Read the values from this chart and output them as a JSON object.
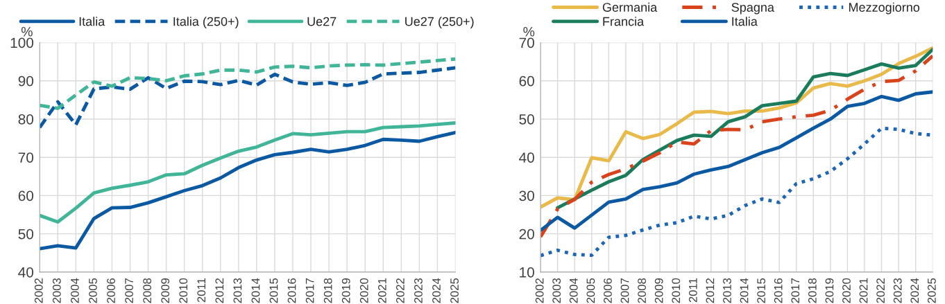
{
  "chart_data": [
    {
      "type": "line",
      "ylabel": "%",
      "categories": [
        "2002",
        "2003",
        "2004",
        "2005",
        "2006",
        "2007",
        "2008",
        "2009",
        "2010",
        "2011",
        "2012",
        "2013",
        "2014",
        "2015",
        "2016",
        "2017",
        "2018",
        "2019",
        "2020",
        "2021",
        "2022",
        "2023",
        "2024",
        "2025"
      ],
      "ylim": [
        40,
        100
      ],
      "yticks": [
        40,
        50,
        60,
        70,
        80,
        90,
        100
      ],
      "grid": true,
      "legend": "top",
      "series": [
        {
          "name": "Italia",
          "color": "#0b59a3",
          "line_style": "solid",
          "values": [
            46.1,
            46.9,
            46.3,
            54.0,
            56.8,
            56.9,
            58.1,
            59.7,
            61.3,
            62.6,
            64.6,
            67.3,
            69.3,
            70.7,
            71.3,
            72.1,
            71.4,
            72.1,
            73.1,
            74.7,
            74.5,
            74.2,
            75.4,
            76.5
          ]
        },
        {
          "name": "Italia (250+)",
          "color": "#0b59a3",
          "line_style": "dashed",
          "values": [
            77.8,
            84.5,
            78.5,
            87.9,
            88.4,
            87.8,
            90.8,
            88.0,
            89.9,
            89.8,
            89.0,
            90.1,
            88.9,
            91.7,
            89.7,
            89.1,
            89.5,
            88.8,
            89.6,
            91.8,
            92.0,
            92.2,
            92.8,
            93.4
          ]
        },
        {
          "name": "Ue27",
          "color": "#40b598",
          "line_style": "solid",
          "values": [
            54.8,
            53.1,
            56.7,
            60.7,
            61.9,
            62.7,
            63.6,
            65.4,
            65.7,
            67.9,
            69.8,
            71.6,
            72.7,
            74.5,
            76.2,
            75.9,
            76.3,
            76.7,
            76.7,
            77.8,
            78.0,
            78.2,
            78.6,
            79.0
          ]
        },
        {
          "name": "Ue27 (250+)",
          "color": "#40b598",
          "line_style": "dashed",
          "values": [
            83.6,
            82.8,
            86.3,
            89.7,
            88.6,
            90.8,
            90.6,
            90.0,
            91.3,
            91.8,
            92.8,
            92.8,
            92.3,
            93.6,
            93.8,
            93.4,
            93.9,
            94.1,
            94.2,
            94.1,
            94.5,
            94.9,
            95.3,
            95.7
          ]
        }
      ]
    },
    {
      "type": "line",
      "ylabel": "%",
      "categories": [
        "2002",
        "2003",
        "2004",
        "2005",
        "2006",
        "2007",
        "2008",
        "2009",
        "2010",
        "2011",
        "2012",
        "2013",
        "2014",
        "2015",
        "2016",
        "2017",
        "2018",
        "2019",
        "2020",
        "2021",
        "2022",
        "2023",
        "2024",
        "2025"
      ],
      "ylim": [
        10,
        70
      ],
      "yticks": [
        10,
        20,
        30,
        40,
        50,
        60,
        70
      ],
      "grid": true,
      "legend": "top",
      "series": [
        {
          "name": "Germania",
          "color": "#e9b94a",
          "line_style": "solid",
          "values": [
            27.0,
            29.4,
            28.9,
            39.9,
            39.1,
            46.7,
            44.9,
            46.0,
            48.8,
            51.8,
            52.0,
            51.4,
            52.1,
            52.1,
            52.9,
            54.2,
            58.1,
            59.3,
            58.6,
            60.0,
            61.7,
            64.5,
            66.4,
            68.6
          ]
        },
        {
          "name": "Francia",
          "color": "#1a7c5c",
          "line_style": "solid",
          "values": [
            null,
            26.8,
            29.1,
            31.4,
            33.6,
            35.3,
            39.4,
            41.9,
            44.4,
            45.8,
            45.5,
            49.3,
            50.6,
            53.5,
            54.1,
            54.7,
            61.0,
            61.9,
            61.4,
            62.9,
            64.4,
            63.3,
            64.0,
            68.2
          ]
        },
        {
          "name": "Spagna",
          "color": "#d9431b",
          "line_style": "dashdot",
          "values": [
            19.2,
            26.5,
            29.0,
            33.5,
            35.5,
            37.0,
            39.0,
            41.2,
            44.0,
            43.5,
            47.0,
            47.3,
            47.2,
            49.3,
            50.0,
            50.6,
            51.0,
            52.3,
            55.2,
            57.8,
            59.8,
            60.1,
            62.6,
            66.5
          ]
        },
        {
          "name": "Italia",
          "color": "#0b59a3",
          "line_style": "solid",
          "values": [
            20.9,
            24.3,
            21.5,
            24.9,
            28.3,
            29.1,
            31.6,
            32.3,
            33.3,
            35.6,
            36.7,
            37.6,
            39.4,
            41.2,
            42.6,
            45.1,
            47.6,
            50.0,
            53.3,
            54.1,
            55.9,
            54.9,
            56.6,
            57.1
          ]
        },
        {
          "name": "Mezzogiorno",
          "color": "#1c66b3",
          "line_style": "dotted",
          "values": [
            14.3,
            15.7,
            14.6,
            14.4,
            19.1,
            19.6,
            21.0,
            22.3,
            22.9,
            24.6,
            23.9,
            24.8,
            27.4,
            29.1,
            28.2,
            33.1,
            34.4,
            36.3,
            39.6,
            43.5,
            47.6,
            47.3,
            46.2,
            45.8
          ]
        }
      ]
    }
  ]
}
